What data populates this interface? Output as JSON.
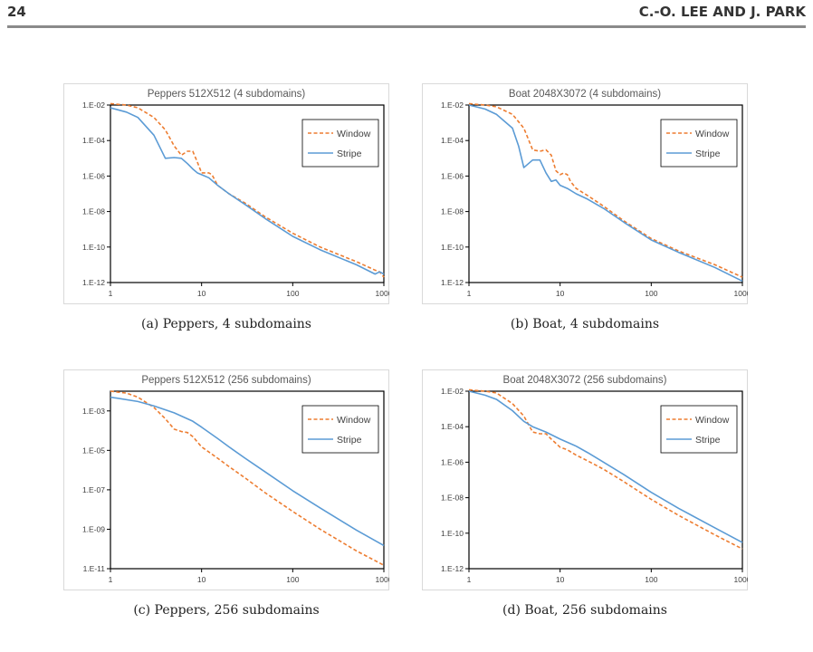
{
  "header": {
    "page_number": "24",
    "running_head": "C.-O. LEE AND J. PARK"
  },
  "chart_data": [
    {
      "type": "line",
      "title": "Peppers 512X512 (4 subdomains)",
      "caption": "(a) Peppers, 4 subdomains",
      "x_scale": "log",
      "y_scale": "log",
      "xlim": [
        1,
        1000
      ],
      "ylim": [
        1e-12,
        0.01
      ],
      "x_ticks": [
        1,
        10,
        100,
        1000
      ],
      "x_tick_labels": [
        "1",
        "10",
        "100",
        "1000"
      ],
      "y_ticks": [
        0.01,
        0.0001,
        1e-06,
        1e-08,
        1e-10,
        1e-12
      ],
      "y_tick_labels": [
        "1.E-02",
        "1.E-04",
        "1.E-06",
        "1.E-08",
        "1.E-10",
        "1.E-12"
      ],
      "grid": false,
      "legend": "top-right",
      "series": [
        {
          "name": "Window",
          "color": "#ED7D31",
          "style": "dashed",
          "x": [
            1,
            1.5,
            2,
            3,
            4,
            5,
            6,
            7,
            8,
            9,
            10,
            12,
            13,
            15,
            20,
            30,
            50,
            100,
            200,
            500,
            800,
            900,
            1000
          ],
          "y": [
            0.012,
            0.01,
            0.007,
            0.002,
            0.0004,
            5e-05,
            1.5e-05,
            2.5e-05,
            2.5e-05,
            6e-06,
            1.5e-06,
            1.5e-06,
            1.2e-06,
            3e-07,
            1e-07,
            3e-08,
            5e-09,
            6e-10,
            1e-10,
            1.5e-11,
            5e-12,
            4e-12,
            2e-12
          ]
        },
        {
          "name": "Stripe",
          "color": "#5B9BD5",
          "style": "solid",
          "x": [
            1,
            1.5,
            2,
            3,
            4,
            5,
            6,
            7,
            8,
            9,
            10,
            12,
            15,
            20,
            30,
            50,
            100,
            200,
            500,
            800,
            900,
            1000
          ],
          "y": [
            0.007,
            0.004,
            0.002,
            0.0002,
            1e-05,
            1.1e-05,
            1e-05,
            5e-06,
            2.5e-06,
            1.5e-06,
            1.2e-06,
            8e-07,
            3e-07,
            1e-07,
            2.5e-08,
            4e-09,
            4e-10,
            7e-11,
            1e-11,
            3e-12,
            4e-12,
            3e-12
          ]
        }
      ]
    },
    {
      "type": "line",
      "title": "Boat 2048X3072 (4 subdomains)",
      "caption": "(b) Boat, 4 subdomains",
      "x_scale": "log",
      "y_scale": "log",
      "xlim": [
        1,
        1000
      ],
      "ylim": [
        1e-12,
        0.01
      ],
      "x_ticks": [
        1,
        10,
        100,
        1000
      ],
      "x_tick_labels": [
        "1",
        "10",
        "100",
        "1000"
      ],
      "y_ticks": [
        0.01,
        0.0001,
        1e-06,
        1e-08,
        1e-10,
        1e-12
      ],
      "y_tick_labels": [
        "1.E-02",
        "1.E-04",
        "1.E-06",
        "1.E-08",
        "1.E-10",
        "1.E-12"
      ],
      "grid": false,
      "legend": "top-right",
      "series": [
        {
          "name": "Window",
          "color": "#ED7D31",
          "style": "dashed",
          "x": [
            1,
            1.5,
            2,
            3,
            4,
            5,
            6,
            7,
            8,
            9,
            10,
            11,
            12,
            13,
            15,
            20,
            30,
            50,
            100,
            200,
            500,
            1000
          ],
          "y": [
            0.012,
            0.01,
            0.008,
            0.003,
            0.0005,
            3e-05,
            2.5e-05,
            3e-05,
            1.5e-05,
            2e-06,
            1.2e-06,
            1.5e-06,
            1.2e-06,
            5e-07,
            2e-07,
            8e-08,
            2e-08,
            3e-09,
            3e-10,
            6e-11,
            1e-11,
            2e-12
          ]
        },
        {
          "name": "Stripe",
          "color": "#5B9BD5",
          "style": "solid",
          "x": [
            1,
            1.5,
            2,
            3,
            3.5,
            4,
            5,
            6,
            7,
            8,
            9,
            10,
            12,
            15,
            20,
            30,
            50,
            100,
            200,
            500,
            1000
          ],
          "y": [
            0.01,
            0.006,
            0.003,
            0.0005,
            5e-05,
            3e-06,
            8e-06,
            8e-06,
            1.5e-06,
            5e-07,
            6e-07,
            3e-07,
            2e-07,
            1e-07,
            5e-08,
            1.5e-08,
            2.5e-09,
            2.5e-10,
            5e-11,
            7e-12,
            1.2e-12
          ]
        }
      ]
    },
    {
      "type": "line",
      "title": "Peppers 512X512 (256 subdomains)",
      "caption": "(c) Peppers, 256 subdomains",
      "x_scale": "log",
      "y_scale": "log",
      "xlim": [
        1,
        1000
      ],
      "ylim": [
        1e-11,
        0.01
      ],
      "x_ticks": [
        1,
        10,
        100,
        1000
      ],
      "x_tick_labels": [
        "1",
        "10",
        "100",
        "1000"
      ],
      "y_ticks": [
        0.001,
        1e-05,
        1e-07,
        1e-09,
        1e-11
      ],
      "y_tick_labels": [
        "1.E-03",
        "1.E-05",
        "1.E-07",
        "1.E-09",
        "1.E-11"
      ],
      "grid": false,
      "legend": "top-right",
      "series": [
        {
          "name": "Window",
          "color": "#ED7D31",
          "style": "dashed",
          "x": [
            1,
            1.5,
            2,
            3,
            4,
            5,
            6,
            7,
            8,
            10,
            15,
            20,
            30,
            50,
            100,
            200,
            500,
            1000
          ],
          "y": [
            0.01,
            0.008,
            0.005,
            0.0015,
            0.0004,
            0.00012,
            9e-05,
            8e-05,
            5e-05,
            1.5e-05,
            4e-06,
            1.5e-06,
            4e-07,
            7e-08,
            8e-09,
            1e-09,
            8e-11,
            1.5e-11
          ]
        },
        {
          "name": "Stripe",
          "color": "#5B9BD5",
          "style": "solid",
          "x": [
            1,
            2,
            3,
            5,
            8,
            10,
            15,
            20,
            30,
            50,
            100,
            200,
            500,
            1000
          ],
          "y": [
            0.005,
            0.003,
            0.0018,
            0.0008,
            0.0003,
            0.00015,
            4e-05,
            1.5e-05,
            4e-06,
            8e-07,
            9e-08,
            1.2e-08,
            9e-10,
            1.5e-10
          ]
        }
      ]
    },
    {
      "type": "line",
      "title": "Boat 2048X3072 (256 subdomains)",
      "caption": "(d) Boat, 256 subdomains",
      "x_scale": "log",
      "y_scale": "log",
      "xlim": [
        1,
        1000
      ],
      "ylim": [
        1e-12,
        0.01
      ],
      "x_ticks": [
        1,
        10,
        100,
        1000
      ],
      "x_tick_labels": [
        "1",
        "10",
        "100",
        "1000"
      ],
      "y_ticks": [
        0.01,
        0.0001,
        1e-06,
        1e-08,
        1e-10,
        1e-12
      ],
      "y_tick_labels": [
        "1.E-02",
        "1.E-04",
        "1.E-06",
        "1.E-08",
        "1.E-10",
        "1.E-12"
      ],
      "grid": false,
      "legend": "top-right",
      "series": [
        {
          "name": "Window",
          "color": "#ED7D31",
          "style": "dashed",
          "x": [
            1,
            1.5,
            2,
            3,
            4,
            5,
            6,
            7,
            8,
            10,
            12,
            15,
            20,
            30,
            50,
            100,
            200,
            500,
            1000
          ],
          "y": [
            0.012,
            0.01,
            0.008,
            0.002,
            0.0004,
            5e-05,
            4e-05,
            4e-05,
            2e-05,
            7e-06,
            5e-06,
            2.5e-06,
            1.2e-06,
            4e-07,
            8e-08,
            8e-09,
            1e-09,
            8e-11,
            1.3e-11
          ]
        },
        {
          "name": "Stripe",
          "color": "#5B9BD5",
          "style": "solid",
          "x": [
            1,
            1.5,
            2,
            3,
            4,
            5,
            7,
            10,
            15,
            20,
            30,
            50,
            100,
            200,
            500,
            1000
          ],
          "y": [
            0.01,
            0.006,
            0.0035,
            0.0008,
            0.0002,
            0.0001,
            5e-05,
            2e-05,
            8e-06,
            3.5e-06,
            1e-06,
            2e-07,
            2e-08,
            2.5e-09,
            2e-10,
            3e-11
          ]
        }
      ]
    }
  ]
}
